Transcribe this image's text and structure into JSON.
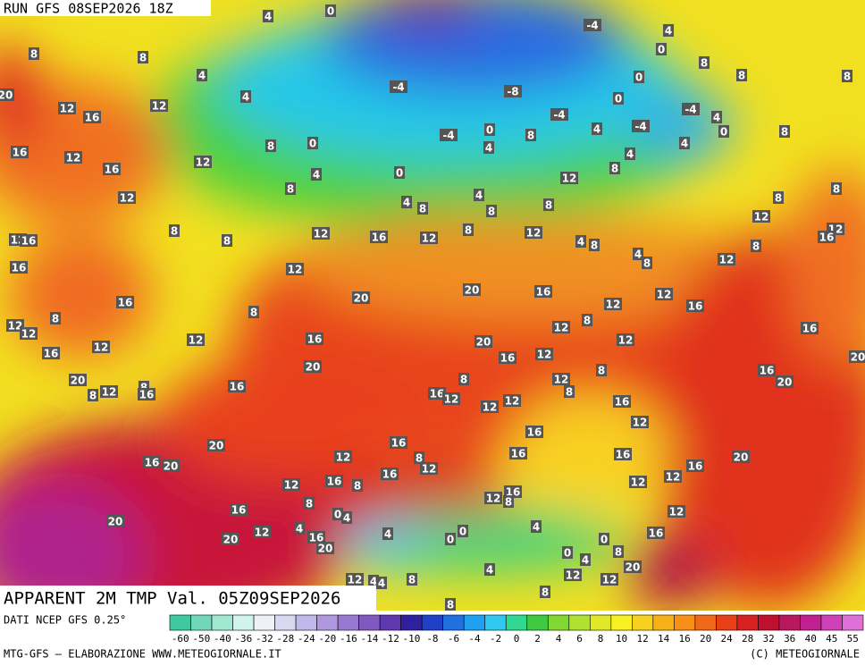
{
  "header": {
    "run": "RUN GFS 08SEP2026 18Z"
  },
  "title": "APPARENT 2M TMP Val. 05Z09SEP2026",
  "footer": {
    "source": "DATI NCEP GFS 0.25°",
    "credit": "MTG-GFS — ELABORAZIONE WWW.METEOGIORNALE.IT",
    "copyright": "(C) METEOGIORNALE"
  },
  "colorbar": {
    "ticks": [
      -60,
      -50,
      -40,
      -36,
      -32,
      -28,
      -24,
      -20,
      -16,
      -14,
      -12,
      -10,
      -8,
      -6,
      -4,
      -2,
      0,
      2,
      4,
      6,
      8,
      10,
      12,
      14,
      16,
      20,
      24,
      28,
      32,
      36,
      40,
      45,
      55
    ],
    "colors": [
      "#40c8a0",
      "#70d8b8",
      "#a0e8d0",
      "#d0f4ec",
      "#f0f0f8",
      "#d8d8f0",
      "#c0b8e8",
      "#b098e0",
      "#9878d0",
      "#8058c0",
      "#6038b0",
      "#3020a0",
      "#2040c8",
      "#2070e0",
      "#20a0f0",
      "#30c8f0",
      "#30d890",
      "#40c840",
      "#80d830",
      "#b0e030",
      "#e0e828",
      "#f8f020",
      "#f8d020",
      "#f8b018",
      "#f89018",
      "#f06818",
      "#e84018",
      "#d82020",
      "#c01030",
      "#b81860",
      "#c02090",
      "#d040b8",
      "#e070d8"
    ]
  },
  "map": {
    "labels": [
      4,
      0,
      -4,
      4,
      0,
      8,
      8,
      4,
      4,
      0,
      8,
      8,
      8,
      -4,
      -8,
      0,
      20,
      12,
      16,
      12,
      -4,
      -4,
      4,
      0,
      8,
      -4,
      4,
      0,
      -4,
      8,
      0,
      8,
      4,
      4,
      4,
      16,
      12,
      12,
      16,
      4,
      0,
      8,
      12,
      8,
      8,
      12,
      8,
      4,
      4,
      8,
      8,
      8,
      12,
      8,
      8,
      12,
      16,
      12,
      8,
      12,
      4,
      8,
      12,
      16,
      12,
      16,
      4,
      8,
      12,
      8,
      16,
      12,
      20,
      20,
      16,
      12,
      12,
      16,
      16,
      8,
      8,
      12,
      12,
      8,
      12,
      16,
      16,
      12,
      20,
      12,
      12,
      16,
      12,
      16,
      20,
      8,
      20,
      16,
      20,
      20,
      8,
      12,
      16,
      12,
      8,
      8,
      16,
      16,
      12,
      8,
      16,
      12,
      12,
      12,
      16,
      16,
      20,
      8,
      12,
      12,
      16,
      16,
      16,
      20,
      16,
      20,
      16,
      12,
      12,
      12,
      16,
      8,
      12,
      16,
      8,
      8,
      16,
      0,
      4,
      12,
      20,
      4,
      4,
      4,
      12,
      20,
      16,
      0,
      0,
      16,
      0,
      20,
      8,
      0,
      4,
      20,
      4,
      12,
      4,
      4,
      8,
      12,
      12,
      8,
      8
    ]
  }
}
